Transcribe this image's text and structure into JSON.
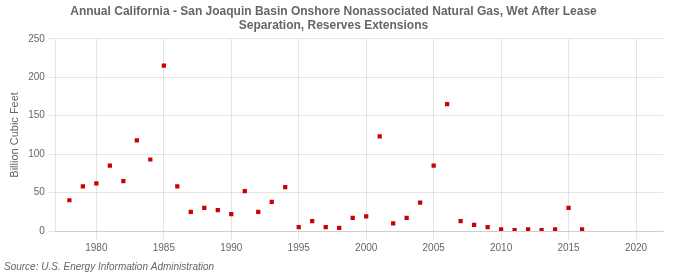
{
  "chart_data": {
    "type": "scatter",
    "title": "Annual California - San Joaquin Basin Onshore Nonassociated Natural Gas, Wet After Lease\nSeparation, Reserves Extensions",
    "ylabel": "Billion Cubic Feet",
    "source": "Source: U.S. Energy Information Administration",
    "x": [
      1978,
      1979,
      1980,
      1981,
      1982,
      1983,
      1984,
      1985,
      1986,
      1987,
      1988,
      1989,
      1990,
      1991,
      1992,
      1993,
      1994,
      1995,
      1996,
      1997,
      1998,
      1999,
      2000,
      2001,
      2002,
      2003,
      2004,
      2005,
      2006,
      2007,
      2008,
      2009,
      2010,
      2011,
      2012,
      2013,
      2014,
      2015,
      2016
    ],
    "values": [
      40,
      58,
      62,
      85,
      65,
      118,
      93,
      215,
      58,
      25,
      30,
      27,
      22,
      52,
      25,
      38,
      57,
      5,
      13,
      5,
      4,
      17,
      19,
      123,
      10,
      17,
      37,
      85,
      165,
      13,
      8,
      5,
      2,
      1,
      2,
      1,
      2,
      30,
      2
    ],
    "color": "#cc0000",
    "marker": "square",
    "xlim": [
      1977,
      2022
    ],
    "xticks": [
      1980,
      1985,
      1990,
      1995,
      2000,
      2005,
      2010,
      2015,
      2020
    ],
    "ylim": [
      0,
      250
    ],
    "yticks": [
      0,
      50,
      100,
      150,
      200,
      250
    ],
    "grid": true
  }
}
